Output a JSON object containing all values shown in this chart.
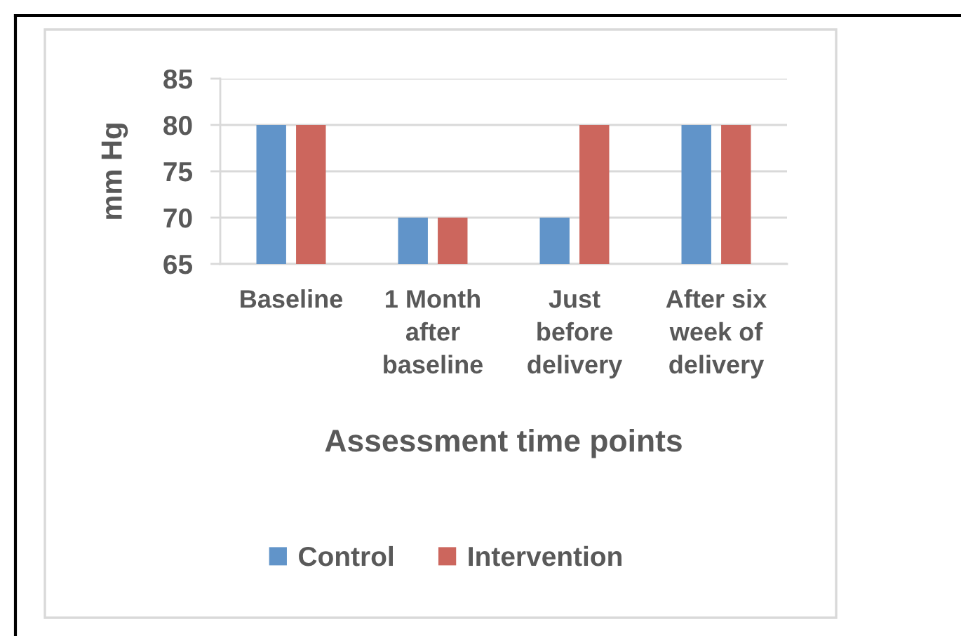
{
  "chart_data": {
    "type": "bar",
    "xlabel": "Assessment time points",
    "ylabel": "mm Hg",
    "categories": [
      "Baseline",
      "1 Month\nafter\nbaseline",
      "Just\nbefore\ndelivery",
      "After six\nweek of\ndelivery"
    ],
    "series": [
      {
        "name": "Control",
        "color": "#6194c9",
        "values": [
          80,
          70,
          70,
          80
        ]
      },
      {
        "name": "Intervention",
        "color": "#cc665d",
        "values": [
          80,
          70,
          80,
          80
        ]
      }
    ],
    "ylim": [
      65,
      85
    ],
    "yticks": [
      65,
      70,
      75,
      80,
      85
    ],
    "grid": "y",
    "legend": "bottom"
  }
}
